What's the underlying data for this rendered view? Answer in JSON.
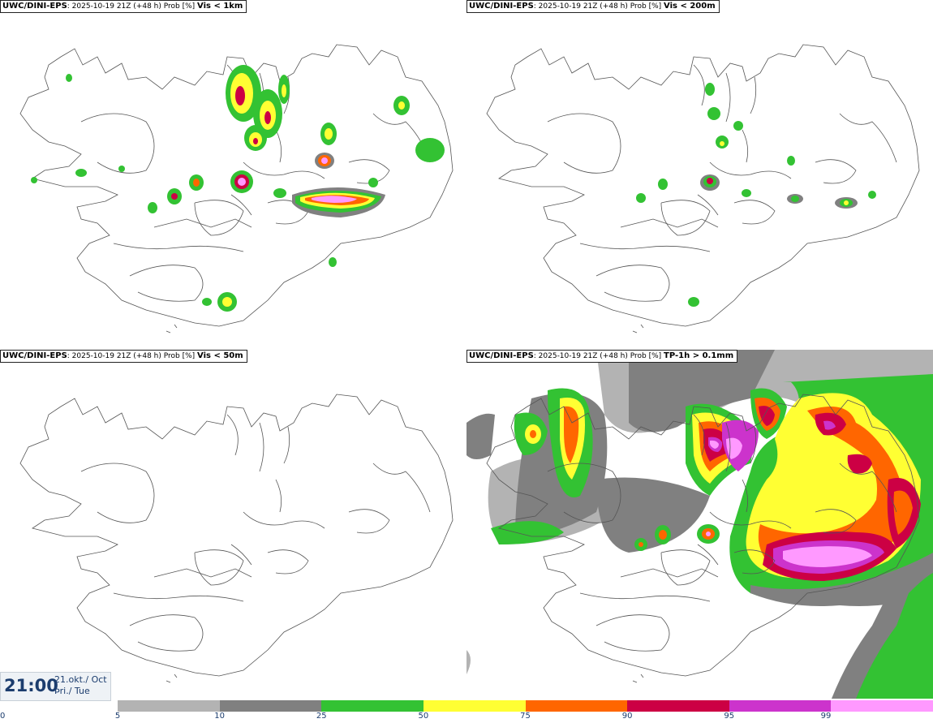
{
  "panels": [
    {
      "model": "UWC/DINI-EPS",
      "run": ": 2025-10-19 21Z (+48 h) Prob [%] ",
      "variable": "Vis < 1km"
    },
    {
      "model": "UWC/DINI-EPS",
      "run": ": 2025-10-19 21Z (+48 h) Prob [%] ",
      "variable": "Vis < 200m"
    },
    {
      "model": "UWC/DINI-EPS",
      "run": ": 2025-10-19 21Z (+48 h) Prob [%] ",
      "variable": "Vis < 50m"
    },
    {
      "model": "UWC/DINI-EPS",
      "run": ": 2025-10-19 21Z (+48 h) Prob [%] ",
      "variable": "TP-1h > 0.1mm"
    }
  ],
  "valid_time": {
    "time": "21:00",
    "date_line1": "21.okt./ Oct",
    "date_line2": "Þri./ Tue"
  },
  "colorbar": {
    "ticks": [
      "0",
      "5",
      "10",
      "25",
      "50",
      "75",
      "90",
      "95",
      "99"
    ],
    "colors": [
      "#b3b3b3",
      "#808080",
      "#33c233",
      "#ffff33",
      "#ff6600",
      "#cc0044",
      "#cc33cc",
      "#ff99ff"
    ]
  },
  "map_colors": {
    "outline": "#555555",
    "sea": "#ffffff",
    "land": "#ffffff"
  }
}
